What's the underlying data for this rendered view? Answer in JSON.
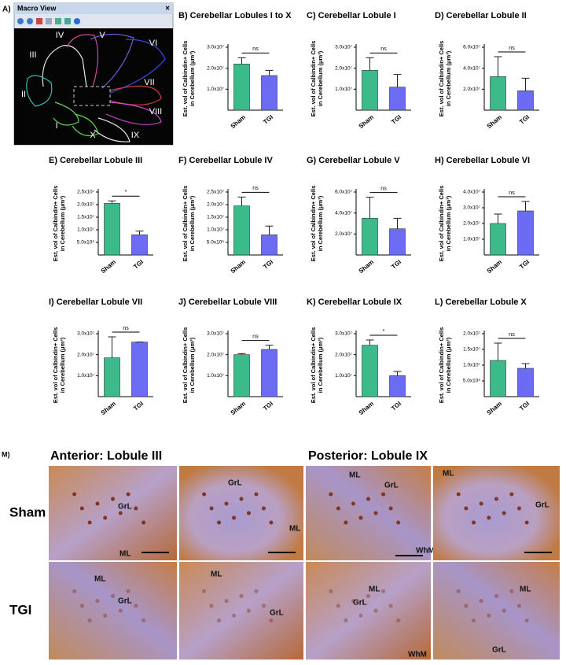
{
  "macro_view": {
    "panel": "A)",
    "title": "Macro View",
    "close": "×",
    "lobule_labels": [
      "III",
      "IV",
      "V",
      "VI",
      "VII",
      "VIII",
      "IX",
      "X",
      "I",
      "II"
    ]
  },
  "chart_data": [
    {
      "type": "bar",
      "panel": "B)",
      "title": "Cerebellar Lobules I to X",
      "ylabel": [
        "Est. vol of Calbindin+ Cells",
        "in Cerebellum (μm³)"
      ],
      "categories": [
        "Sham",
        "TGI"
      ],
      "values": [
        22000000,
        16500000
      ],
      "errors": [
        3000000,
        2500000
      ],
      "colors": [
        "#3dba8c",
        "#6c6cf2"
      ],
      "ylim": [
        0,
        30000000
      ],
      "yticks": [
        {
          "value": 10000000,
          "label": "1.0x10⁷"
        },
        {
          "value": 20000000,
          "label": "2.0x10⁷"
        },
        {
          "value": 30000000,
          "label": "3.0x10⁷"
        }
      ],
      "annotation": "ns"
    },
    {
      "type": "bar",
      "panel": "C)",
      "title": "Cerebellar Lobule I",
      "ylabel": [
        "Est. vol of Calbindin+ Cells",
        "in Cerebellum (μm³)"
      ],
      "categories": [
        "Sham",
        "TGI"
      ],
      "values": [
        19000000,
        11000000
      ],
      "errors": [
        6000000,
        6000000
      ],
      "colors": [
        "#3dba8c",
        "#6c6cf2"
      ],
      "ylim": [
        0,
        30000000
      ],
      "yticks": [
        {
          "value": 10000000,
          "label": "1.0x10⁷"
        },
        {
          "value": 20000000,
          "label": "2.0x10⁷"
        },
        {
          "value": 30000000,
          "label": "3.0x10⁷"
        }
      ],
      "annotation": "ns"
    },
    {
      "type": "bar",
      "panel": "D)",
      "title": "Cerebellar Lobule II",
      "ylabel": [
        "Est. vol of Calbindin+ Cells",
        "in Cerebellum (μm³)"
      ],
      "categories": [
        "Sham",
        "TGI"
      ],
      "values": [
        32000000,
        18500000
      ],
      "errors": [
        19000000,
        12000000
      ],
      "colors": [
        "#3dba8c",
        "#6c6cf2"
      ],
      "ylim": [
        0,
        60000000
      ],
      "yticks": [
        {
          "value": 20000000,
          "label": "2.0x10⁷"
        },
        {
          "value": 40000000,
          "label": "4.0x10⁷"
        },
        {
          "value": 60000000,
          "label": "6.0x10⁷"
        }
      ],
      "annotation": "ns"
    },
    {
      "type": "bar",
      "panel": "E)",
      "title": "Cerebellar Lobule III",
      "ylabel": [
        "Est. vol of Calbindin+ Cells",
        "in Cerebellum (μm³)"
      ],
      "categories": [
        "Sham",
        "TGI"
      ],
      "values": [
        20500000,
        8000000
      ],
      "errors": [
        1000000,
        1500000
      ],
      "colors": [
        "#3dba8c",
        "#6c6cf2"
      ],
      "ylim": [
        0,
        25000000
      ],
      "yticks": [
        {
          "value": 5000000,
          "label": "5.0x10⁶"
        },
        {
          "value": 10000000,
          "label": "1.0x10⁷"
        },
        {
          "value": 15000000,
          "label": "1.5x10⁷"
        },
        {
          "value": 20000000,
          "label": "2.0x10⁷"
        },
        {
          "value": 25000000,
          "label": "2.5x10⁷"
        }
      ],
      "annotation": "*"
    },
    {
      "type": "bar",
      "panel": "F)",
      "title": "Cerebellar Lobule IV",
      "ylabel": [
        "Est. vol of Calbindin+ Cells",
        "in Cerebellum (μm³)"
      ],
      "categories": [
        "Sham",
        "TGI"
      ],
      "values": [
        19500000,
        8000000
      ],
      "errors": [
        3500000,
        3500000
      ],
      "colors": [
        "#3dba8c",
        "#6c6cf2"
      ],
      "ylim": [
        0,
        25000000
      ],
      "yticks": [
        {
          "value": 5000000,
          "label": "5.0x10⁶"
        },
        {
          "value": 10000000,
          "label": "1.0x10⁷"
        },
        {
          "value": 15000000,
          "label": "1.5x10⁷"
        },
        {
          "value": 20000000,
          "label": "2.0x10⁷"
        },
        {
          "value": 25000000,
          "label": "2.5x10⁷"
        }
      ],
      "annotation": "ns"
    },
    {
      "type": "bar",
      "panel": "G)",
      "title": "Cerebellar Lobule V",
      "ylabel": [
        "Est. vol of Calbindin+ Cells",
        "in Cerebellum (μm³)"
      ],
      "categories": [
        "Sham",
        "TGI"
      ],
      "values": [
        35000000,
        25000000
      ],
      "errors": [
        20000000,
        10000000
      ],
      "colors": [
        "#3dba8c",
        "#6c6cf2"
      ],
      "ylim": [
        0,
        60000000
      ],
      "yticks": [
        {
          "value": 20000000,
          "label": "2.0x10⁷"
        },
        {
          "value": 40000000,
          "label": "4.0x10⁷"
        },
        {
          "value": 60000000,
          "label": "6.0x10⁷"
        }
      ],
      "annotation": "ns"
    },
    {
      "type": "bar",
      "panel": "H)",
      "title": "Cerebellar Lobule VI",
      "ylabel": [
        "Est. vol of Calbindin+ Cells",
        "in Cerebellum (μm³)"
      ],
      "categories": [
        "Sham",
        "TGI"
      ],
      "values": [
        20000000,
        28000000
      ],
      "errors": [
        6000000,
        6000000
      ],
      "colors": [
        "#3dba8c",
        "#6c6cf2"
      ],
      "ylim": [
        0,
        40000000
      ],
      "yticks": [
        {
          "value": 10000000,
          "label": "1.0x10⁷"
        },
        {
          "value": 20000000,
          "label": "2.0x10⁷"
        },
        {
          "value": 30000000,
          "label": "3.0x10⁷"
        },
        {
          "value": 40000000,
          "label": "4.0x10⁷"
        }
      ],
      "annotation": "ns"
    },
    {
      "type": "bar",
      "panel": "I)",
      "title": "Cerebellar Lobule VII",
      "ylabel": [
        "Est. vol of Calbindin+ Cells",
        "in Cerebellum (μm³)"
      ],
      "categories": [
        "Sham",
        "TGI"
      ],
      "values": [
        18500000,
        26000000
      ],
      "errors": [
        10000000,
        0
      ],
      "colors": [
        "#3dba8c",
        "#6c6cf2"
      ],
      "ylim": [
        0,
        30000000
      ],
      "yticks": [
        {
          "value": 10000000,
          "label": "1.0x10⁷"
        },
        {
          "value": 20000000,
          "label": "2.0x10⁷"
        },
        {
          "value": 30000000,
          "label": "3.0x10⁷"
        }
      ],
      "annotation": "ns"
    },
    {
      "type": "bar",
      "panel": "J)",
      "title": "Cerebellar Lobule VIII",
      "ylabel": [
        "Est. vol of Calbindin+ Cells",
        "in Cerebellum (μm³)"
      ],
      "categories": [
        "Sham",
        "TGI"
      ],
      "values": [
        20000000,
        22500000
      ],
      "errors": [
        500000,
        2000000
      ],
      "colors": [
        "#3dba8c",
        "#6c6cf2"
      ],
      "ylim": [
        0,
        30000000
      ],
      "yticks": [
        {
          "value": 10000000,
          "label": "1.0x10⁷"
        },
        {
          "value": 20000000,
          "label": "2.0x10⁷"
        },
        {
          "value": 30000000,
          "label": "3.0x10⁷"
        }
      ],
      "annotation": "ns"
    },
    {
      "type": "bar",
      "panel": "K)",
      "title": "Cerebellar Lobule IX",
      "ylabel": [
        "Est. vol of Calbindin+ Cells",
        "in Cerebellum (μm³)"
      ],
      "categories": [
        "Sham",
        "TGI"
      ],
      "values": [
        24500000,
        10000000
      ],
      "errors": [
        2500000,
        2000000
      ],
      "colors": [
        "#3dba8c",
        "#6c6cf2"
      ],
      "ylim": [
        0,
        30000000
      ],
      "yticks": [
        {
          "value": 10000000,
          "label": "1.0x10⁷"
        },
        {
          "value": 20000000,
          "label": "2.0x10⁷"
        },
        {
          "value": 30000000,
          "label": "3.0x10⁷"
        }
      ],
      "annotation": "*"
    },
    {
      "type": "bar",
      "panel": "L)",
      "title": "Cerebellar Lobule X",
      "ylabel": [
        "Est. vol of Calbindin+ Cells",
        "in Cerebellum (μm³)"
      ],
      "categories": [
        "Sham",
        "TGI"
      ],
      "values": [
        11500000,
        9000000
      ],
      "errors": [
        5500000,
        1500000
      ],
      "colors": [
        "#3dba8c",
        "#6c6cf2"
      ],
      "ylim": [
        0,
        20000000
      ],
      "yticks": [
        {
          "value": 5000000,
          "label": "5.0x10⁶"
        },
        {
          "value": 10000000,
          "label": "1.0x10⁷"
        },
        {
          "value": 15000000,
          "label": "1.5x10⁷"
        },
        {
          "value": 20000000,
          "label": "2.0x10⁷"
        }
      ],
      "annotation": "ns"
    }
  ],
  "micrographs": {
    "panel": "M)",
    "columns": [
      "Anterior: Lobule III",
      "Posterior: Lobule IX"
    ],
    "rows": [
      "Sham",
      "TGI"
    ],
    "images": [
      {
        "labels": [
          "GrL",
          "ML"
        ]
      },
      {
        "labels": [
          "GrL",
          "ML"
        ]
      },
      {
        "labels": [
          "ML",
          "GrL",
          "WhM"
        ]
      },
      {
        "labels": [
          "ML",
          "GrL"
        ]
      },
      {
        "labels": [
          "ML",
          "GrL"
        ]
      },
      {
        "labels": [
          "ML",
          "GrL"
        ]
      },
      {
        "labels": [
          "ML",
          "GrL",
          "WhM"
        ]
      },
      {
        "labels": [
          "ML",
          "GrL"
        ]
      }
    ]
  }
}
